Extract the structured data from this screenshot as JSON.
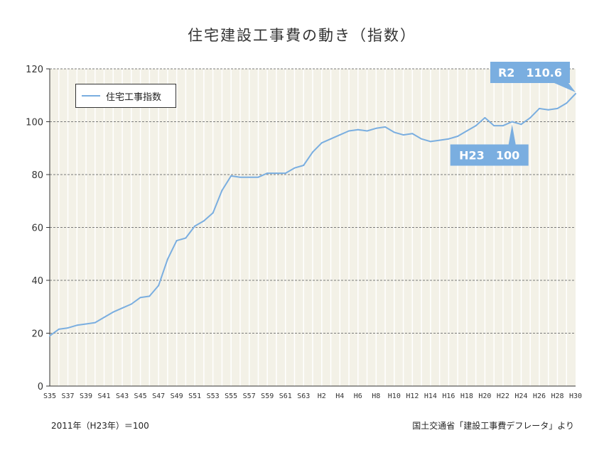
{
  "chart_data": {
    "type": "line",
    "title": "住宅建設工事費の動き（指数）",
    "ylim": [
      0,
      120
    ],
    "yticks": [
      0,
      20,
      40,
      60,
      80,
      100,
      120
    ],
    "grid": true,
    "legend_position": "top-left",
    "x": [
      "S35",
      "S36",
      "S37",
      "S38",
      "S39",
      "S40",
      "S41",
      "S42",
      "S43",
      "S44",
      "S45",
      "S46",
      "S47",
      "S48",
      "S49",
      "S50",
      "S51",
      "S52",
      "S53",
      "S54",
      "S55",
      "S56",
      "S57",
      "S58",
      "S59",
      "S60",
      "S61",
      "S62",
      "S63",
      "H1",
      "H2",
      "H3",
      "H4",
      "H5",
      "H6",
      "H7",
      "H8",
      "H9",
      "H10",
      "H11",
      "H12",
      "H13",
      "H14",
      "H15",
      "H16",
      "H17",
      "H18",
      "H19",
      "H20",
      "H21",
      "H22",
      "H23",
      "H24",
      "H25",
      "H26",
      "H27",
      "H28",
      "H29",
      "H30"
    ],
    "x_tick_labels": [
      "S35",
      "S37",
      "S39",
      "S41",
      "S43",
      "S45",
      "S47",
      "S49",
      "S51",
      "S53",
      "S55",
      "S57",
      "S59",
      "S61",
      "S63",
      "H2",
      "H4",
      "H6",
      "H8",
      "H10",
      "H12",
      "H14",
      "H16",
      "H18",
      "H20",
      "H22",
      "H24",
      "H26",
      "H28",
      "H30"
    ],
    "series": [
      {
        "name": "住宅工事指数",
        "color": "#7aaee0",
        "values": [
          19.0,
          21.5,
          22.0,
          23.0,
          23.5,
          24.0,
          26.0,
          28.0,
          29.5,
          31.0,
          33.5,
          34.0,
          38.0,
          48.0,
          55.0,
          56.0,
          60.5,
          62.5,
          65.5,
          74.0,
          79.5,
          79.0,
          79.0,
          79.0,
          80.5,
          80.5,
          80.5,
          82.5,
          83.5,
          88.5,
          92.0,
          93.5,
          95.0,
          96.5,
          97.0,
          96.5,
          97.5,
          98.0,
          96.0,
          95.0,
          95.5,
          93.5,
          92.5,
          93.0,
          93.5,
          94.5,
          96.5,
          98.5,
          101.5,
          98.5,
          98.5,
          100.0,
          99.0,
          101.5,
          105.0,
          104.5,
          105.0,
          107.0,
          110.6
        ]
      }
    ],
    "annotations": [
      {
        "text": "R2　110.6",
        "x": "H30",
        "y": 110.6
      },
      {
        "text": "H23　100",
        "x": "H23",
        "y": 100
      }
    ]
  },
  "footnote_left": "2011年（H23年）＝100",
  "footnote_right": "国土交通省「建設工事費デフレータ」より",
  "colors": {
    "plot_bg": "#f3f1e7",
    "line": "#7aaee0",
    "callout": "#7aaee0",
    "grid": "#7a7a7a"
  }
}
